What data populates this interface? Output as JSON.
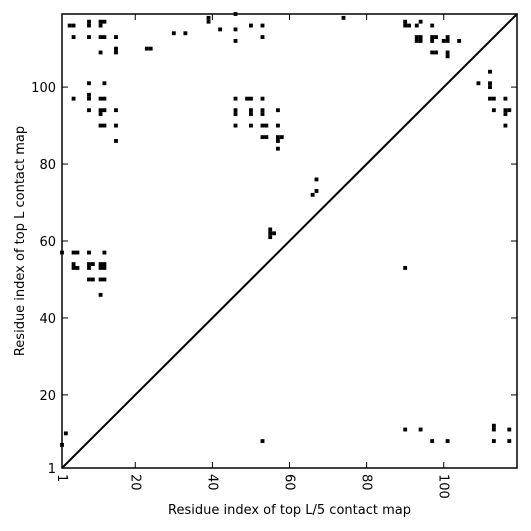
{
  "chart_data": {
    "type": "scatter",
    "xlabel": "Residue index of top L/5 contact map",
    "ylabel": "Residue index of top L contact map",
    "xlim": [
      1,
      119
    ],
    "ylim": [
      1,
      119
    ],
    "xticks": [
      1,
      20,
      40,
      60,
      80,
      100
    ],
    "yticks": [
      1,
      20,
      40,
      60,
      80,
      100
    ],
    "grid": false,
    "diagonal": true,
    "marker_color": "#000000",
    "upper_points": [
      [
        3,
        116
      ],
      [
        4,
        116
      ],
      [
        4,
        113
      ],
      [
        4,
        97
      ],
      [
        8,
        117
      ],
      [
        8,
        116
      ],
      [
        8,
        113
      ],
      [
        8,
        101
      ],
      [
        8,
        98
      ],
      [
        8,
        97
      ],
      [
        8,
        94
      ],
      [
        11,
        117
      ],
      [
        11,
        116
      ],
      [
        11,
        113
      ],
      [
        11,
        109
      ],
      [
        11,
        97
      ],
      [
        11,
        94
      ],
      [
        11,
        93
      ],
      [
        11,
        90
      ],
      [
        12,
        117
      ],
      [
        12,
        113
      ],
      [
        12,
        101
      ],
      [
        12,
        97
      ],
      [
        12,
        94
      ],
      [
        12,
        90
      ],
      [
        15,
        113
      ],
      [
        15,
        110
      ],
      [
        15,
        109
      ],
      [
        15,
        94
      ],
      [
        15,
        90
      ],
      [
        15,
        86
      ],
      [
        23,
        110
      ],
      [
        24,
        110
      ],
      [
        30,
        114
      ],
      [
        33,
        114
      ],
      [
        39,
        118
      ],
      [
        39,
        117
      ],
      [
        42,
        115
      ],
      [
        46,
        119
      ],
      [
        46,
        115
      ],
      [
        46,
        112
      ],
      [
        46,
        97
      ],
      [
        46,
        94
      ],
      [
        46,
        93
      ],
      [
        46,
        90
      ],
      [
        49,
        97
      ],
      [
        50,
        116
      ],
      [
        50,
        97
      ],
      [
        50,
        94
      ],
      [
        50,
        93
      ],
      [
        50,
        90
      ],
      [
        53,
        116
      ],
      [
        53,
        113
      ],
      [
        53,
        97
      ],
      [
        53,
        94
      ],
      [
        53,
        93
      ],
      [
        53,
        90
      ],
      [
        53,
        87
      ],
      [
        54,
        90
      ],
      [
        54,
        87
      ],
      [
        57,
        94
      ],
      [
        57,
        90
      ],
      [
        57,
        87
      ],
      [
        57,
        86
      ],
      [
        57,
        84
      ],
      [
        58,
        87
      ],
      [
        74,
        118
      ],
      [
        90,
        117
      ],
      [
        90,
        116
      ],
      [
        91,
        116
      ],
      [
        93,
        116
      ],
      [
        94,
        117
      ],
      [
        94,
        113
      ],
      [
        94,
        112
      ],
      [
        93,
        113
      ],
      [
        93,
        112
      ],
      [
        97,
        116
      ],
      [
        97,
        113
      ],
      [
        97,
        112
      ],
      [
        97,
        109
      ],
      [
        98,
        113
      ],
      [
        98,
        109
      ],
      [
        100,
        112
      ],
      [
        101,
        113
      ],
      [
        101,
        112
      ],
      [
        101,
        109
      ],
      [
        101,
        108
      ],
      [
        104,
        112
      ],
      [
        109,
        101
      ],
      [
        112,
        104
      ],
      [
        112,
        101
      ],
      [
        112,
        100
      ],
      [
        112,
        97
      ],
      [
        113,
        97
      ],
      [
        113,
        94
      ],
      [
        116,
        97
      ],
      [
        116,
        94
      ],
      [
        116,
        93
      ],
      [
        116,
        90
      ],
      [
        117,
        94
      ]
    ],
    "lower_points": [
      [
        1,
        57
      ],
      [
        1,
        7
      ],
      [
        2,
        10
      ],
      [
        4,
        57
      ],
      [
        4,
        54
      ],
      [
        4,
        53
      ],
      [
        5,
        57
      ],
      [
        5,
        53
      ],
      [
        8,
        57
      ],
      [
        8,
        54
      ],
      [
        8,
        53
      ],
      [
        8,
        50
      ],
      [
        9,
        54
      ],
      [
        9,
        50
      ],
      [
        11,
        54
      ],
      [
        11,
        53
      ],
      [
        11,
        50
      ],
      [
        11,
        46
      ],
      [
        12,
        57
      ],
      [
        12,
        54
      ],
      [
        12,
        53
      ],
      [
        12,
        50
      ],
      [
        53,
        8
      ],
      [
        55,
        63
      ],
      [
        55,
        62
      ],
      [
        55,
        61
      ],
      [
        56,
        62
      ],
      [
        66,
        72
      ],
      [
        67,
        76
      ],
      [
        67,
        73
      ],
      [
        90,
        53
      ],
      [
        90,
        11
      ],
      [
        94,
        11
      ],
      [
        97,
        8
      ],
      [
        101,
        8
      ],
      [
        113,
        12
      ],
      [
        113,
        11
      ],
      [
        113,
        8
      ],
      [
        117,
        11
      ],
      [
        117,
        8
      ]
    ]
  }
}
